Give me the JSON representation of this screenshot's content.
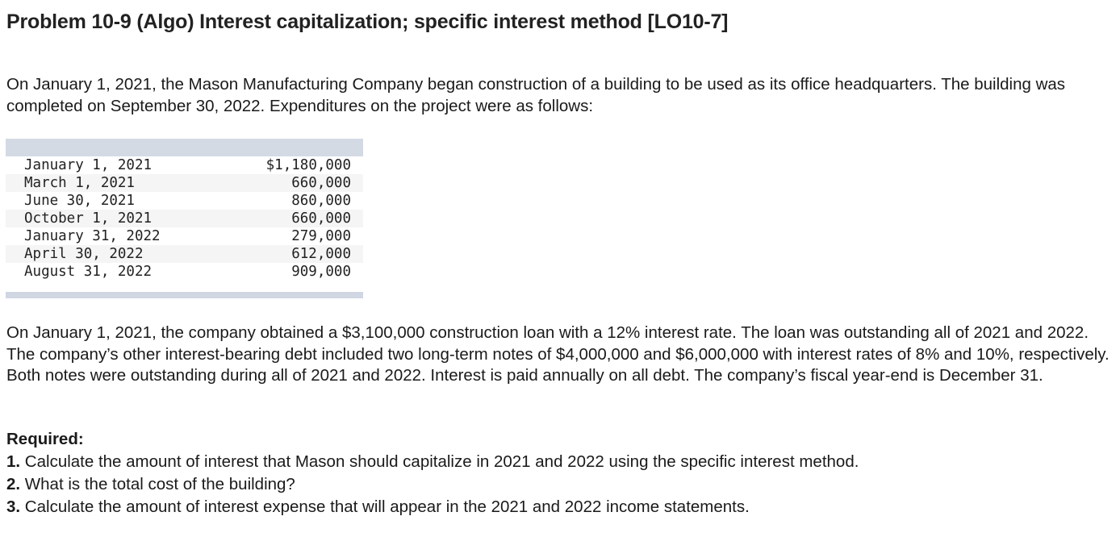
{
  "problem": {
    "title": "Problem 10-9 (Algo) Interest capitalization; specific interest method [LO10-7]",
    "intro": "On January 1, 2021, the Mason Manufacturing Company began construction of a building to be used as its office headquarters. The building was completed on September 30, 2022. Expenditures on the project were as follows:",
    "expenditures": [
      {
        "date": "January 1, 2021",
        "amount": "$1,180,000"
      },
      {
        "date": "March 1, 2021",
        "amount": "660,000"
      },
      {
        "date": "June 30, 2021",
        "amount": "860,000"
      },
      {
        "date": "October 1, 2021",
        "amount": "660,000"
      },
      {
        "date": "January 31, 2022",
        "amount": "279,000"
      },
      {
        "date": "April 30, 2022",
        "amount": "612,000"
      },
      {
        "date": "August 31, 2022",
        "amount": "909,000"
      }
    ],
    "loan_info": "On January 1, 2021, the company obtained a $3,100,000 construction loan with a 12% interest rate. The loan was outstanding all of 2021 and 2022. The company’s other interest-bearing debt included two long-term notes of $4,000,000 and $6,000,000 with interest rates of 8% and 10%, respectively. Both notes were outstanding during all of 2021 and 2022. Interest is paid annually on all debt. The company’s fiscal year-end is December 31.",
    "required": {
      "label": "Required:",
      "items": [
        {
          "num": "1.",
          "text": " Calculate the amount of interest that Mason should capitalize in 2021 and 2022 using the specific interest method."
        },
        {
          "num": "2.",
          "text": " What is the total cost of the building?"
        },
        {
          "num": "3.",
          "text": " Calculate the amount of interest expense that will appear in the 2021 and 2022 income statements."
        }
      ]
    }
  }
}
